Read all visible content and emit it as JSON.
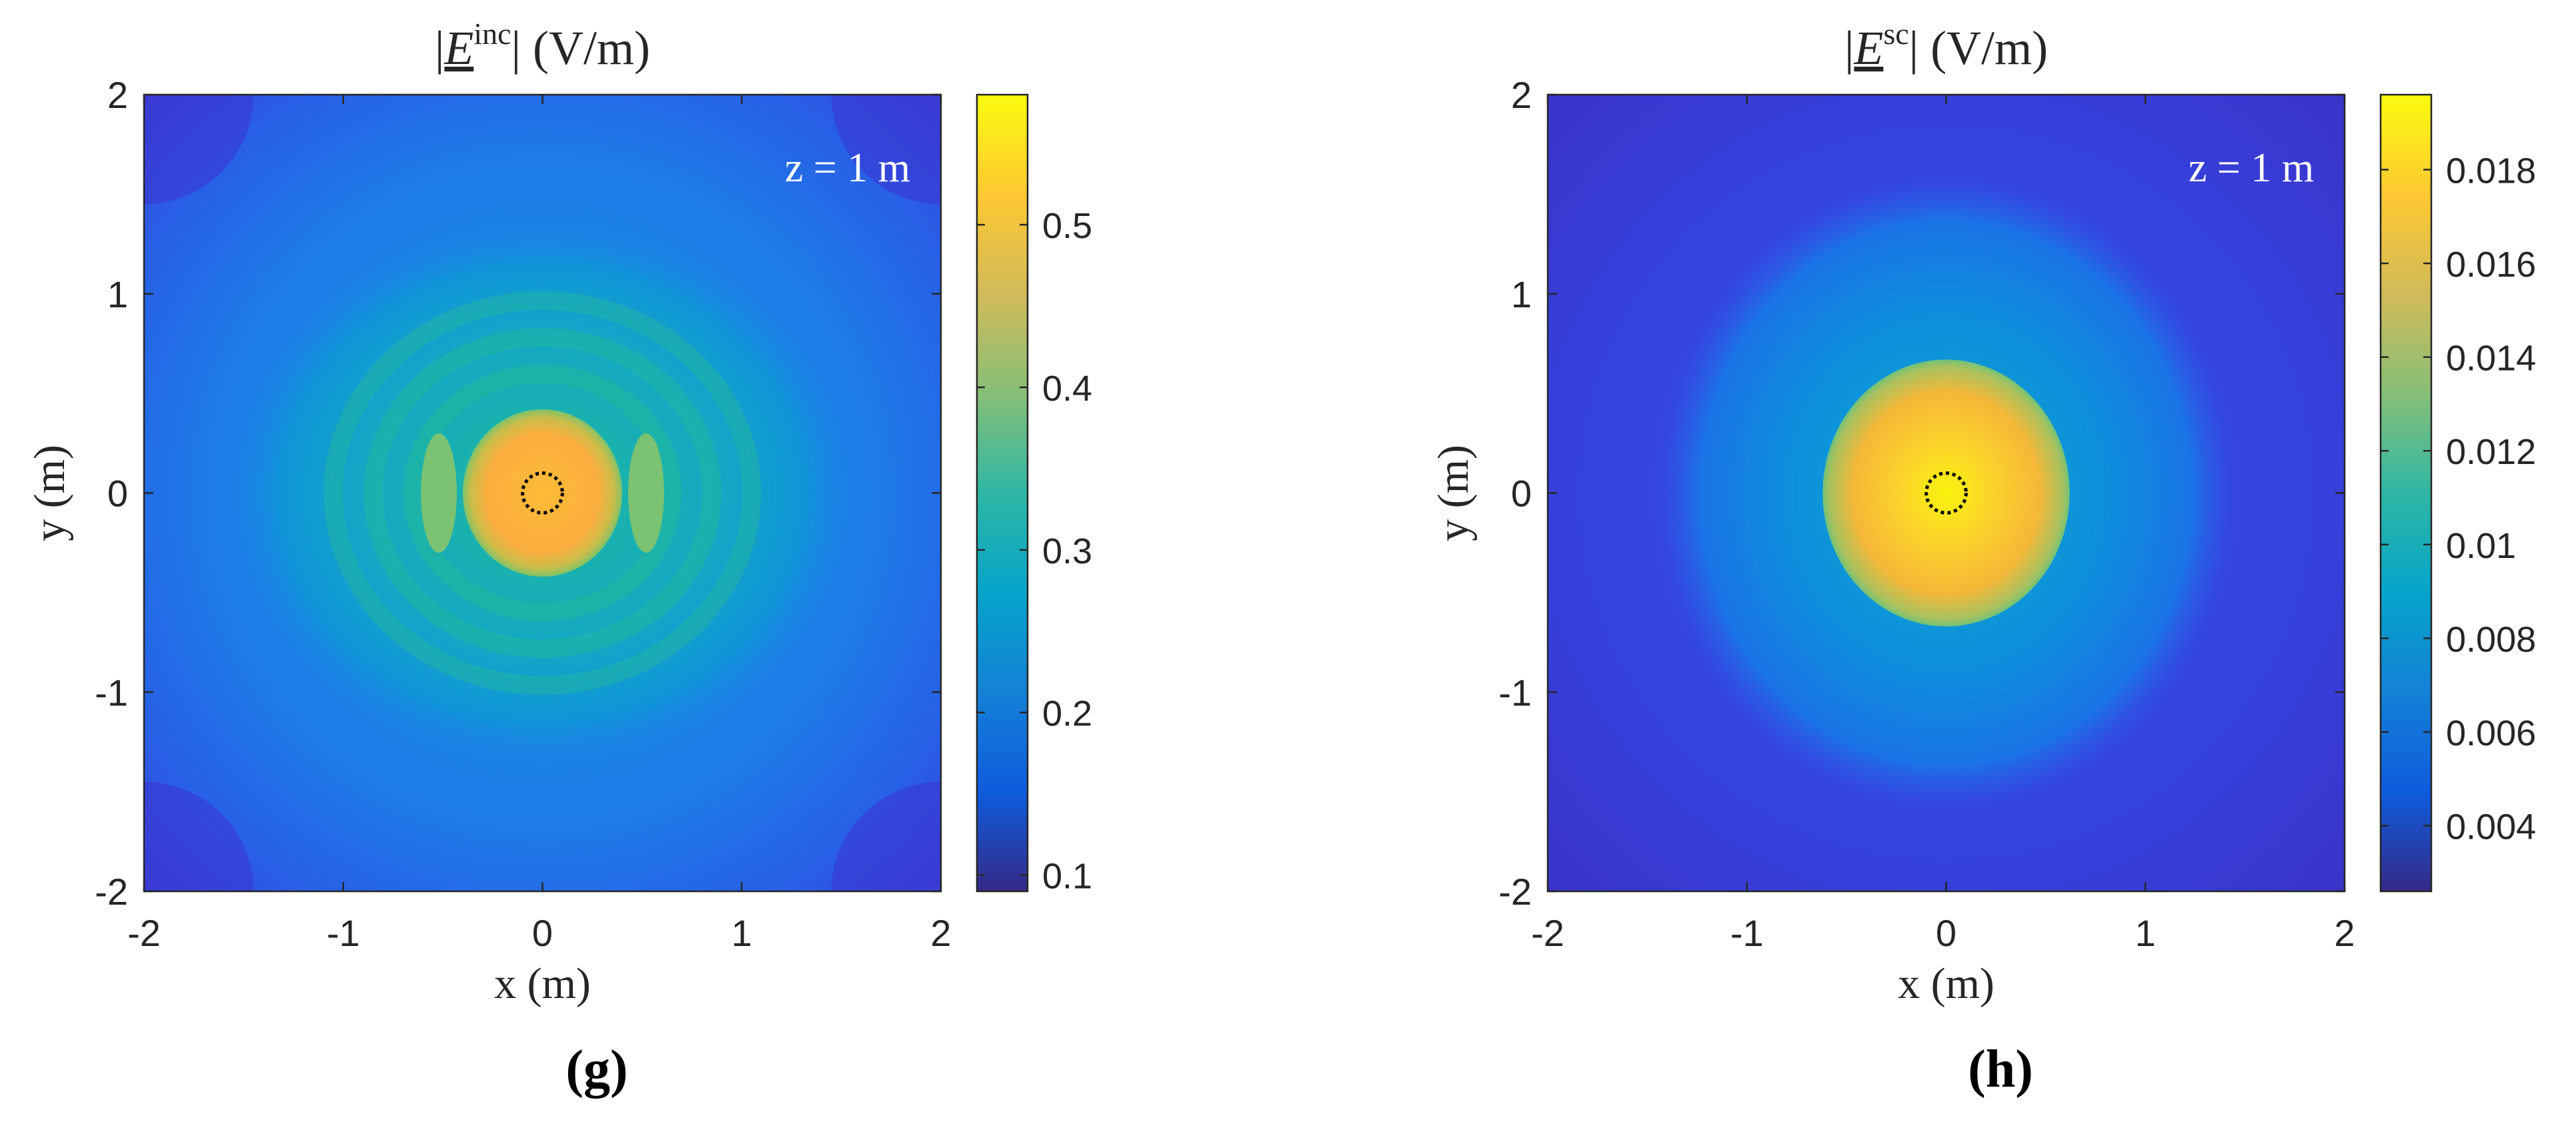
{
  "chart_data": [
    {
      "type": "heatmap",
      "title_prefix": "|",
      "title_symbol": "E",
      "title_superscript": "inc",
      "title_suffix": "| (V/m)",
      "xlabel": "x (m)",
      "ylabel": "y (m)",
      "xlim": [
        -2,
        2
      ],
      "ylim": [
        -2,
        2
      ],
      "x_ticks": [
        "-2",
        "-1",
        "0",
        "1",
        "2"
      ],
      "y_ticks": [
        "2",
        "1",
        "0",
        "-1",
        "-2"
      ],
      "annotation": "z = 1 m",
      "panel_label": "(g)",
      "colorbar": {
        "range": [
          0.09,
          0.58
        ],
        "ticks": [
          "0.5",
          "0.4",
          "0.3",
          "0.2",
          "0.1"
        ],
        "tick_values": [
          0.5,
          0.4,
          0.3,
          0.2,
          0.1
        ],
        "colormap": "parula"
      },
      "field": {
        "background": 0.2,
        "center_peak": 0.52,
        "ring_value": 0.35,
        "marker": "dotted circle at origin, radius 0.1 m"
      }
    },
    {
      "type": "heatmap",
      "title_prefix": "|",
      "title_symbol": "E",
      "title_superscript": "sc",
      "title_suffix": "| (V/m)",
      "xlabel": "x (m)",
      "ylabel": "y (m)",
      "xlim": [
        -2,
        2
      ],
      "ylim": [
        -2,
        2
      ],
      "x_ticks": [
        "-2",
        "-1",
        "0",
        "1",
        "2"
      ],
      "y_ticks": [
        "2",
        "1",
        "0",
        "-1",
        "-2"
      ],
      "annotation": "z = 1 m",
      "panel_label": "(h)",
      "colorbar": {
        "range": [
          0.0026,
          0.0196
        ],
        "ticks": [
          "0.018",
          "0.016",
          "0.014",
          "0.012",
          "0.01",
          "0.008",
          "0.006",
          "0.004"
        ],
        "tick_values": [
          0.018,
          0.016,
          0.014,
          0.012,
          0.01,
          0.008,
          0.006,
          0.004
        ],
        "colormap": "parula"
      },
      "field": {
        "background": 0.004,
        "center_peak": 0.0195,
        "marker": "dotted circle at origin, radius 0.1 m"
      }
    }
  ],
  "colors": {
    "parula_stops": [
      "#352a87",
      "#0f5cdd",
      "#1481d6",
      "#06a4ca",
      "#2eb7a4",
      "#87bf77",
      "#d1bb59",
      "#fec832",
      "#f9fb0e"
    ]
  }
}
